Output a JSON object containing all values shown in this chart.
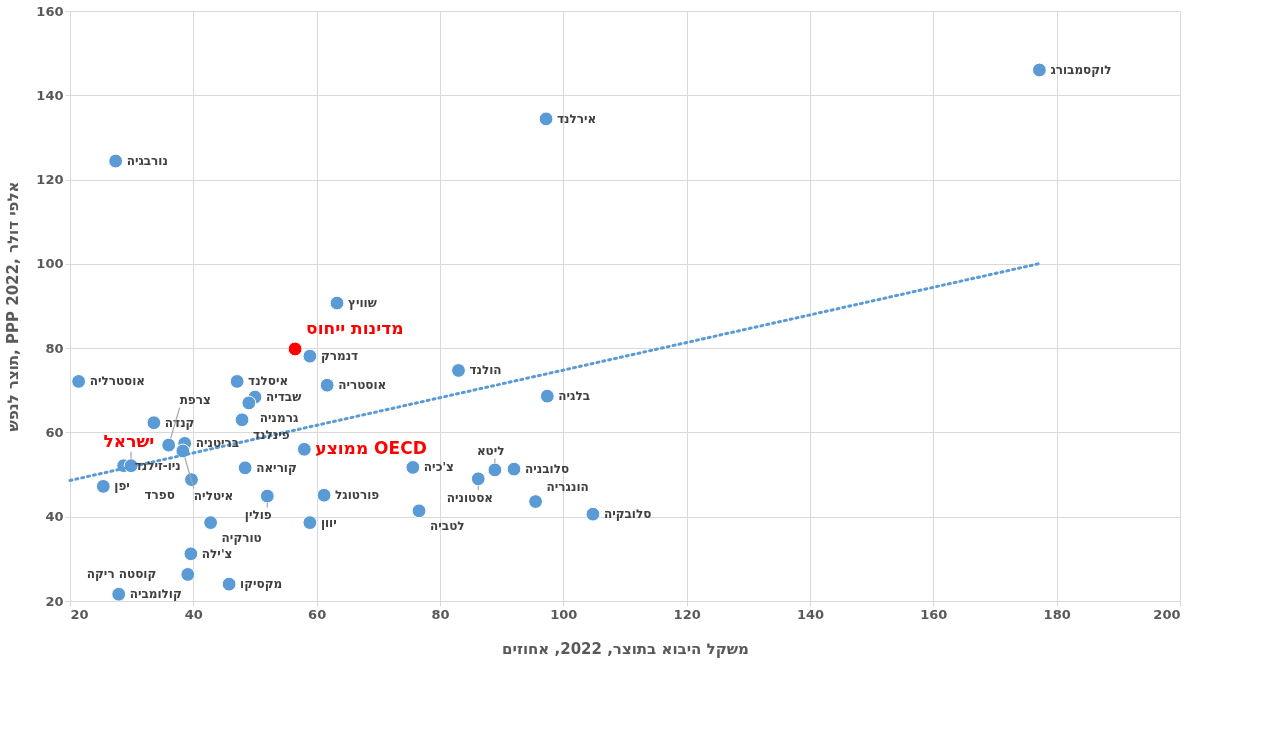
{
  "chart_data": {
    "type": "scatter",
    "xlabel": "משקל היבוא בתוצר, 2022, אחוזים",
    "ylabel": "תוצר לנפש, PPP 2022, אלפי דולר",
    "xlim": [
      20,
      200
    ],
    "xticks": [
      20,
      40,
      60,
      80,
      100,
      120,
      140,
      160,
      180,
      200
    ],
    "ylim": [
      20,
      160
    ],
    "yticks": [
      20,
      40,
      60,
      80,
      100,
      120,
      140,
      160
    ],
    "grid": true,
    "marker": "circle",
    "series": [
      {
        "color": "#5b9bd5",
        "x": [
          177.2,
          97.2,
          27.4,
          63.3,
          58.9,
          21.4,
          47.1,
          61.7,
          83,
          97.4,
          50,
          49,
          47.9,
          33.6,
          36,
          38.6,
          38.3,
          28.7,
          25.4,
          39.7,
          48.4,
          52,
          61.2,
          42.8,
          58.9,
          39.6,
          39.1,
          45.8,
          27.9,
          75.6,
          86.2,
          88.9,
          92,
          76.6,
          95.5,
          104.8
        ],
        "values": [
          146,
          134.4,
          124.4,
          90.7,
          78.1,
          72.1,
          72.1,
          71.2,
          74.7,
          68.6,
          68.4,
          67,
          63,
          62.3,
          57,
          57.4,
          55.6,
          52.1,
          47.2,
          48.8,
          51.6,
          44.9,
          45.1,
          38.6,
          38.6,
          31.2,
          26.3,
          24,
          21.6,
          51.7,
          49,
          51.1,
          51.3,
          41.4,
          43.6,
          40.6
        ]
      },
      {
        "name": "ישראל",
        "color": "#5b9bd5",
        "x": [
          29.9
        ],
        "values": [
          52.1
        ]
      },
      {
        "name": "ממוצע OECD",
        "color": "#5b9bd5",
        "x": [
          58
        ],
        "values": [
          56
        ]
      },
      {
        "name": "מדינות ייחוס",
        "color": "#ff0000",
        "x": [
          56.5
        ],
        "values": [
          79.8
        ]
      },
      {
        "type": "line",
        "line_style": "dotted",
        "marker": "none",
        "color": "#5b9bd5",
        "x": [
          20,
          177
        ],
        "values": [
          48.6,
          100
        ]
      }
    ],
    "annotations": [
      {
        "text": "לוקסמבורג",
        "x": 177.2,
        "y": 146
      },
      {
        "text": "אירלנד",
        "x": 97.2,
        "y": 134.4
      },
      {
        "text": "נורבגיה",
        "x": 27.4,
        "y": 124.4
      },
      {
        "text": "שוויץ",
        "x": 63.3,
        "y": 90.7
      },
      {
        "text": "דנמרק",
        "x": 58.9,
        "y": 78.1
      },
      {
        "text": "אוסטרליה",
        "x": 21.4,
        "y": 72.1
      },
      {
        "text": "איסלנד",
        "x": 47.1,
        "y": 72.1
      },
      {
        "text": "אוסטריה",
        "x": 61.7,
        "y": 71.2
      },
      {
        "text": "הולנד",
        "x": 83,
        "y": 74.7
      },
      {
        "text": "בלגיה",
        "x": 97.4,
        "y": 68.6
      },
      {
        "text": "שבדיה",
        "x": 50,
        "y": 68.4
      },
      {
        "text": "גרמניה",
        "x": 49,
        "y": 67
      },
      {
        "text": "פינלנד",
        "x": 47.9,
        "y": 63
      },
      {
        "text": "קנדה",
        "x": 33.6,
        "y": 62.3
      },
      {
        "text": "צרפת",
        "x": 36,
        "y": 57
      },
      {
        "text": "בריטניה",
        "x": 38.6,
        "y": 57.4
      },
      {
        "text": "איטליה",
        "x": 38.3,
        "y": 55.6
      },
      {
        "text": "ניו-זילנד",
        "x": 28.7,
        "y": 52.1
      },
      {
        "text": "יפן",
        "x": 25.4,
        "y": 47.2
      },
      {
        "text": "ספרד",
        "x": 39.7,
        "y": 48.8
      },
      {
        "text": "קוריאה",
        "x": 48.4,
        "y": 51.6
      },
      {
        "text": "פולין",
        "x": 52,
        "y": 44.9
      },
      {
        "text": "פורטוגל",
        "x": 61.2,
        "y": 45.1
      },
      {
        "text": "טורקיה",
        "x": 42.8,
        "y": 38.6
      },
      {
        "text": "יוון",
        "x": 58.9,
        "y": 38.6
      },
      {
        "text": "צ'ילה",
        "x": 39.6,
        "y": 31.2
      },
      {
        "text": "קוסטה ריקה",
        "x": 39.1,
        "y": 26.3
      },
      {
        "text": "מקסיקו",
        "x": 45.8,
        "y": 24
      },
      {
        "text": "קולומביה",
        "x": 27.9,
        "y": 21.6
      },
      {
        "text": "צ'כיה",
        "x": 75.6,
        "y": 51.7
      },
      {
        "text": "אסטוניה",
        "x": 86.2,
        "y": 49
      },
      {
        "text": "ליטא",
        "x": 88.9,
        "y": 51.1
      },
      {
        "text": "סלובניה",
        "x": 92,
        "y": 51.3
      },
      {
        "text": "לטביה",
        "x": 76.6,
        "y": 41.4
      },
      {
        "text": "הונגריה",
        "x": 95.5,
        "y": 43.6
      },
      {
        "text": "סלובקיה",
        "x": 104.8,
        "y": 40.6
      }
    ]
  }
}
